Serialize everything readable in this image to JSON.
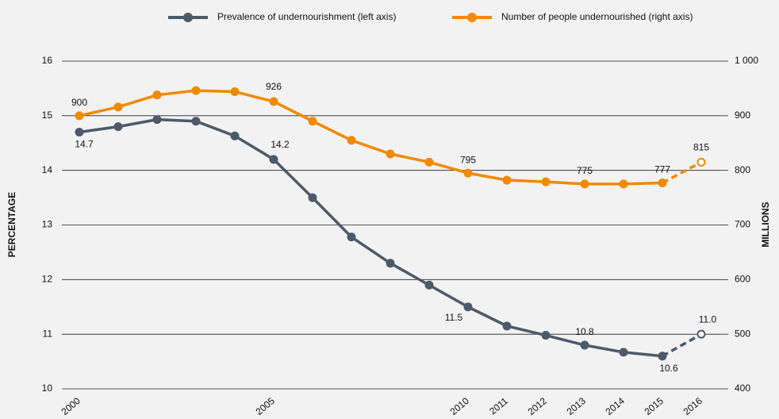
{
  "chart_data": {
    "type": "line",
    "categories": [
      "2000",
      null,
      null,
      null,
      null,
      "2005",
      null,
      null,
      null,
      null,
      "2010",
      "2011",
      "2012",
      "2013",
      "2014",
      "2015",
      "2016"
    ],
    "series": [
      {
        "name": "Prevalence of undernourishment  (left axis)",
        "color": "#4d5a6a",
        "values": [
          14.7,
          14.8,
          14.93,
          14.9,
          14.63,
          14.2,
          13.5,
          12.78,
          12.3,
          11.9,
          11.5,
          11.15,
          10.98,
          10.8,
          10.67,
          10.6,
          11.0
        ],
        "value_labels": [
          "14.7",
          null,
          null,
          null,
          null,
          "14.2",
          null,
          null,
          null,
          null,
          "11.5",
          null,
          null,
          "10.8",
          null,
          "10.6",
          "11.0"
        ]
      },
      {
        "name": "Number of people undernourished (right axis)",
        "color": "#f08a00",
        "axis": "y2",
        "values": [
          900,
          916,
          938,
          946,
          944,
          926,
          890,
          855,
          830,
          815,
          795,
          782,
          779,
          775,
          775,
          777,
          815
        ],
        "value_labels": [
          "900",
          null,
          null,
          null,
          null,
          "926",
          null,
          null,
          null,
          null,
          "795",
          null,
          null,
          "775",
          null,
          "777",
          "815"
        ]
      }
    ],
    "projected_from": 15,
    "ylabel": "PERCENTAGE",
    "y2label": "MILLIONS",
    "ylim": [
      10,
      16
    ],
    "yticks": [
      10,
      11,
      12,
      13,
      14,
      15,
      16
    ],
    "y2lim": [
      400,
      1000
    ],
    "y2ticks": [
      400,
      500,
      600,
      700,
      800,
      900,
      {
        "value": 1000,
        "label": "1 000"
      }
    ],
    "grid": true,
    "legend": "top"
  }
}
